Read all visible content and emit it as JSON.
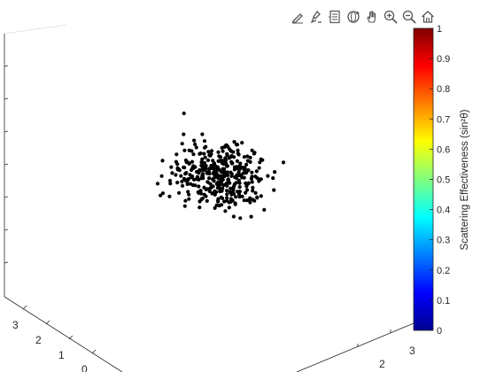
{
  "toolbar": {
    "items": [
      {
        "name": "edit-plot-icon"
      },
      {
        "name": "brush-icon"
      },
      {
        "name": "legend-icon"
      },
      {
        "name": "rotate-3d-icon"
      },
      {
        "name": "pan-hand-icon"
      },
      {
        "name": "zoom-in-icon"
      },
      {
        "name": "zoom-out-icon"
      },
      {
        "name": "home-icon"
      }
    ]
  },
  "chart_data": {
    "type": "scatter",
    "title": "",
    "marker_color": "#000000",
    "axes_visible_ticks": {
      "left_axis": [
        "3",
        "2",
        "1",
        "0"
      ],
      "right_axis": [
        "2",
        "3"
      ]
    },
    "colorbar": {
      "label": "Scattering Effectiveness (sin²θ)",
      "colormap": "jet",
      "range": [
        0,
        1
      ],
      "ticks": [
        "0",
        "0.1",
        "0.2",
        "0.3",
        "0.4",
        "0.5",
        "0.6",
        "0.7",
        "0.8",
        "0.9",
        "1"
      ]
    },
    "points_note": "point cloud centered in view",
    "points": []
  }
}
